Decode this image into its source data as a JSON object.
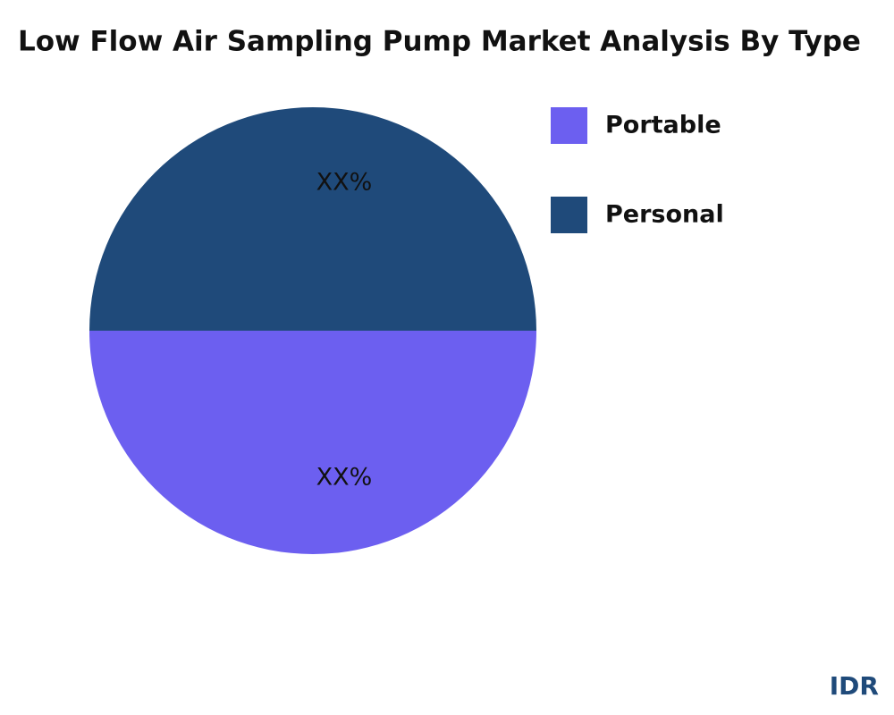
{
  "chart_data": {
    "type": "pie",
    "title": "Low Flow Air Sampling Pump Market Analysis By Type",
    "categories": [
      "Portable",
      "Personal"
    ],
    "values": [
      50,
      50
    ],
    "value_labels": [
      "XX%",
      "XX%"
    ],
    "colors": [
      "#6c5ff0",
      "#1f4a7a"
    ],
    "legend": "right",
    "watermark": "IDR"
  }
}
